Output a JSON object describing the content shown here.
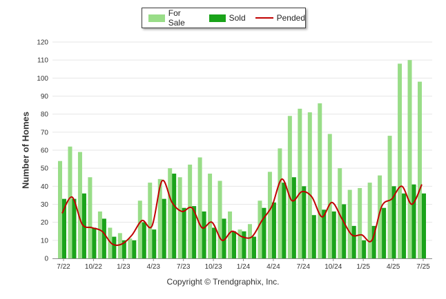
{
  "legend": {
    "items": [
      {
        "label": "For Sale",
        "color": "#99dd88"
      },
      {
        "label": "Sold",
        "color": "#1aa31a"
      },
      {
        "label": "Pended",
        "color": "#c00000"
      }
    ]
  },
  "credit": "Copyright © Trendgraphix, Inc.",
  "chart_data": {
    "type": "bar",
    "ylabel": "Number of Homes",
    "ylim": [
      0,
      120
    ],
    "yticks": [
      0,
      10,
      20,
      30,
      40,
      50,
      60,
      70,
      80,
      90,
      100,
      110,
      120
    ],
    "grid": true,
    "legend_position": "top",
    "months": [
      "7/22",
      "8/22",
      "9/22",
      "10/22",
      "11/22",
      "12/22",
      "1/23",
      "2/23",
      "3/23",
      "4/23",
      "5/23",
      "6/23",
      "7/23",
      "8/23",
      "9/23",
      "10/23",
      "11/23",
      "12/23",
      "1/24",
      "2/24",
      "3/24",
      "4/24",
      "5/24",
      "6/24",
      "7/24",
      "8/24",
      "9/24",
      "10/24",
      "11/24",
      "12/24",
      "1/25",
      "2/25",
      "3/25",
      "4/25",
      "5/25",
      "6/25",
      "7/25"
    ],
    "xtick_labels": [
      {
        "index": 0,
        "label": "7/22"
      },
      {
        "index": 3,
        "label": "10/22"
      },
      {
        "index": 6,
        "label": "1/23"
      },
      {
        "index": 9,
        "label": "4/23"
      },
      {
        "index": 12,
        "label": "7/23"
      },
      {
        "index": 15,
        "label": "10/23"
      },
      {
        "index": 18,
        "label": "1/24"
      },
      {
        "index": 21,
        "label": "4/24"
      },
      {
        "index": 24,
        "label": "7/24"
      },
      {
        "index": 27,
        "label": "10/24"
      },
      {
        "index": 30,
        "label": "1/25"
      },
      {
        "index": 33,
        "label": "4/25"
      },
      {
        "index": 36,
        "label": "7/25"
      }
    ],
    "series": [
      {
        "name": "For Sale",
        "type": "bar",
        "color": "#99dd88",
        "values": [
          54,
          62,
          59,
          45,
          26,
          17,
          14,
          11,
          32,
          42,
          44,
          50,
          45,
          52,
          56,
          47,
          43,
          26,
          16,
          19,
          32,
          48,
          61,
          79,
          83,
          81,
          86,
          69,
          50,
          38,
          39,
          42,
          46,
          68,
          108,
          110,
          98
        ]
      },
      {
        "name": "Sold",
        "type": "bar",
        "color": "#1aa31a",
        "values": [
          33,
          33,
          36,
          17,
          22,
          12,
          10,
          10,
          20,
          16,
          33,
          47,
          28,
          29,
          26,
          17,
          22,
          15,
          15,
          12,
          28,
          31,
          42,
          45,
          40,
          24,
          27,
          26,
          30,
          18,
          10,
          18,
          28,
          40,
          36,
          41,
          36
        ]
      },
      {
        "name": "Pended",
        "type": "line",
        "color": "#c00000",
        "values": [
          25,
          34,
          19,
          17,
          15,
          8,
          8,
          13,
          21,
          18,
          43,
          31,
          26,
          28,
          17,
          20,
          10,
          15,
          12,
          12,
          21,
          29,
          44,
          32,
          37,
          34,
          23,
          31,
          22,
          13,
          13,
          10,
          29,
          33,
          40,
          30,
          41
        ]
      }
    ]
  }
}
